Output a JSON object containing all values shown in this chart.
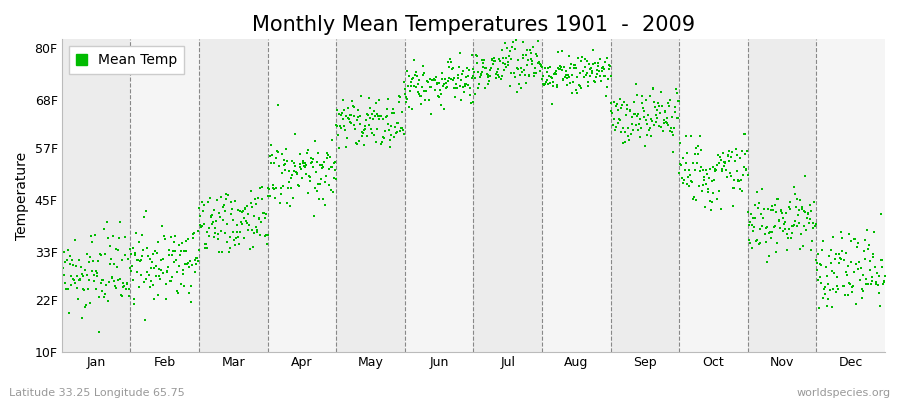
{
  "title": "Monthly Mean Temperatures 1901  -  2009",
  "ylabel": "Temperature",
  "ytick_labels": [
    "10F",
    "22F",
    "33F",
    "45F",
    "57F",
    "68F",
    "80F"
  ],
  "ytick_values": [
    10,
    22,
    33,
    45,
    57,
    68,
    80
  ],
  "ylim": [
    10,
    82
  ],
  "month_labels": [
    "Jan",
    "Feb",
    "Mar",
    "Apr",
    "May",
    "Jun",
    "Jul",
    "Aug",
    "Sep",
    "Oct",
    "Nov",
    "Dec"
  ],
  "legend_label": "Mean Temp",
  "dot_color": "#00bb00",
  "band_colors": [
    "#ececec",
    "#f5f5f5"
  ],
  "footer_left": "Latitude 33.25 Longitude 65.75",
  "footer_right": "worldspecies.org",
  "mean_temps_F": [
    28,
    30,
    40,
    52,
    63,
    72,
    76,
    74,
    64,
    52,
    40,
    29
  ],
  "std_temps_F": [
    4.5,
    4.5,
    4,
    4,
    3.5,
    3,
    2.5,
    2.5,
    3.5,
    4,
    4,
    4.5
  ],
  "warming_trend_F_per_century": [
    1.5,
    1.5,
    1.5,
    1.5,
    1.5,
    1.5,
    1.5,
    1.5,
    1.5,
    1.5,
    1.5,
    1.5
  ],
  "n_years": 109,
  "start_year": 1901,
  "title_fontsize": 15,
  "axis_fontsize": 10,
  "tick_fontsize": 9,
  "footer_fontsize": 8
}
